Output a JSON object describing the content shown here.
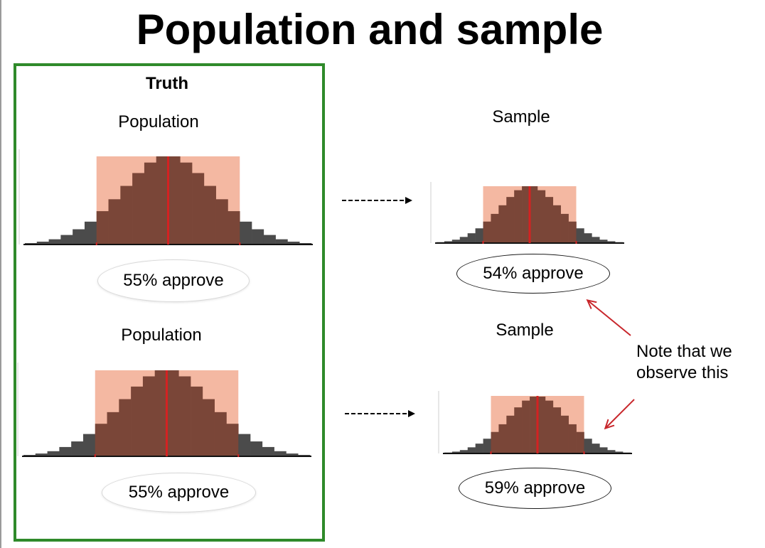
{
  "title": "Population and sample",
  "truth_label": "Truth",
  "rows": [
    {
      "population": {
        "label": "Population",
        "approve_text": "55% approve"
      },
      "sample": {
        "label": "Sample",
        "approve_text": "54% approve"
      }
    },
    {
      "population": {
        "label": "Population",
        "approve_text": "55% approve"
      },
      "sample": {
        "label": "Sample",
        "approve_text": "59% approve"
      }
    }
  ],
  "note": {
    "line1": "Note that we",
    "line2": "observe this"
  },
  "colors": {
    "histogram_bar": "#4b4b4b",
    "highlight_fill": "#f4b8a2",
    "highlight_overlay": "#7a4638",
    "center_line": "#d42222",
    "truth_border": "#2f8a2a",
    "note_arrow": "#c8262b",
    "flow_arrow": "#000000"
  },
  "distribution_shape": [
    3,
    6,
    11,
    20,
    32,
    48,
    70,
    95,
    123,
    150,
    172,
    185,
    185,
    172,
    150,
    123,
    95,
    70,
    48,
    32,
    20,
    11,
    6,
    3
  ]
}
